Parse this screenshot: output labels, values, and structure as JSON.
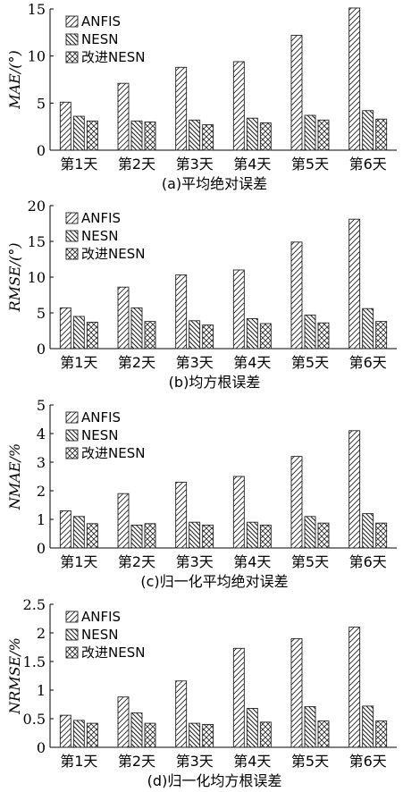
{
  "chart_data": [
    {
      "type": "bar",
      "panel": "a",
      "caption": "(a)平均绝对误差",
      "ylabel": "MAE/(°)",
      "ylim": [
        0,
        15
      ],
      "yticks": [
        0,
        5,
        10,
        15
      ],
      "categories": [
        "第1天",
        "第2天",
        "第3天",
        "第4天",
        "第5天",
        "第6天"
      ],
      "legend_position": "top-left",
      "series": [
        {
          "name": "ANFIS",
          "pattern": "diag-right",
          "values": [
            5.1,
            7.1,
            8.8,
            9.4,
            12.2,
            15.1
          ]
        },
        {
          "name": "NESN",
          "pattern": "diag-left",
          "values": [
            3.6,
            3.1,
            3.2,
            3.4,
            3.7,
            4.2
          ]
        },
        {
          "name": "改进NESN",
          "pattern": "crosshatch",
          "values": [
            3.1,
            3.0,
            2.7,
            2.9,
            3.2,
            3.3
          ]
        }
      ]
    },
    {
      "type": "bar",
      "panel": "b",
      "caption": "(b)均方根误差",
      "ylabel": "RMSE/(°)",
      "ylim": [
        0,
        20
      ],
      "yticks": [
        0,
        5,
        10,
        15,
        20
      ],
      "categories": [
        "第1天",
        "第2天",
        "第3天",
        "第4天",
        "第5天",
        "第6天"
      ],
      "legend_position": "top-left",
      "series": [
        {
          "name": "ANFIS",
          "pattern": "diag-right",
          "values": [
            5.7,
            8.6,
            10.3,
            11.0,
            14.9,
            18.1
          ]
        },
        {
          "name": "NESN",
          "pattern": "diag-left",
          "values": [
            4.5,
            5.7,
            3.9,
            4.2,
            4.7,
            5.6
          ]
        },
        {
          "name": "改进NESN",
          "pattern": "crosshatch",
          "values": [
            3.7,
            3.8,
            3.3,
            3.5,
            3.6,
            3.8
          ]
        }
      ]
    },
    {
      "type": "bar",
      "panel": "c",
      "caption": "(c)归一化平均绝对误差",
      "ylabel": "NMAE/%",
      "ylim": [
        0,
        5
      ],
      "yticks": [
        0,
        1,
        2,
        3,
        4,
        5
      ],
      "categories": [
        "第1天",
        "第2天",
        "第3天",
        "第4天",
        "第5天",
        "第6天"
      ],
      "legend_position": "top-left",
      "series": [
        {
          "name": "ANFIS",
          "pattern": "diag-right",
          "values": [
            1.3,
            1.9,
            2.3,
            2.5,
            3.2,
            4.1
          ]
        },
        {
          "name": "NESN",
          "pattern": "diag-left",
          "values": [
            1.1,
            0.8,
            0.9,
            0.9,
            1.1,
            1.2
          ]
        },
        {
          "name": "改进NESN",
          "pattern": "crosshatch",
          "values": [
            0.85,
            0.85,
            0.8,
            0.8,
            0.87,
            0.87
          ]
        }
      ]
    },
    {
      "type": "bar",
      "panel": "d",
      "caption": "(d)归一化均方根误差",
      "ylabel": "NRMSE/%",
      "ylim": [
        0,
        2.5
      ],
      "yticks": [
        0,
        0.5,
        1,
        1.5,
        2,
        2.5
      ],
      "categories": [
        "第1天",
        "第2天",
        "第3天",
        "第4天",
        "第5天",
        "第6天"
      ],
      "legend_position": "top-left",
      "series": [
        {
          "name": "ANFIS",
          "pattern": "diag-right",
          "values": [
            0.56,
            0.88,
            1.16,
            1.73,
            1.9,
            2.1
          ]
        },
        {
          "name": "NESN",
          "pattern": "diag-left",
          "values": [
            0.47,
            0.6,
            0.42,
            0.68,
            0.71,
            0.72
          ]
        },
        {
          "name": "改进NESN",
          "pattern": "crosshatch",
          "values": [
            0.42,
            0.42,
            0.4,
            0.44,
            0.46,
            0.46
          ]
        }
      ]
    }
  ]
}
